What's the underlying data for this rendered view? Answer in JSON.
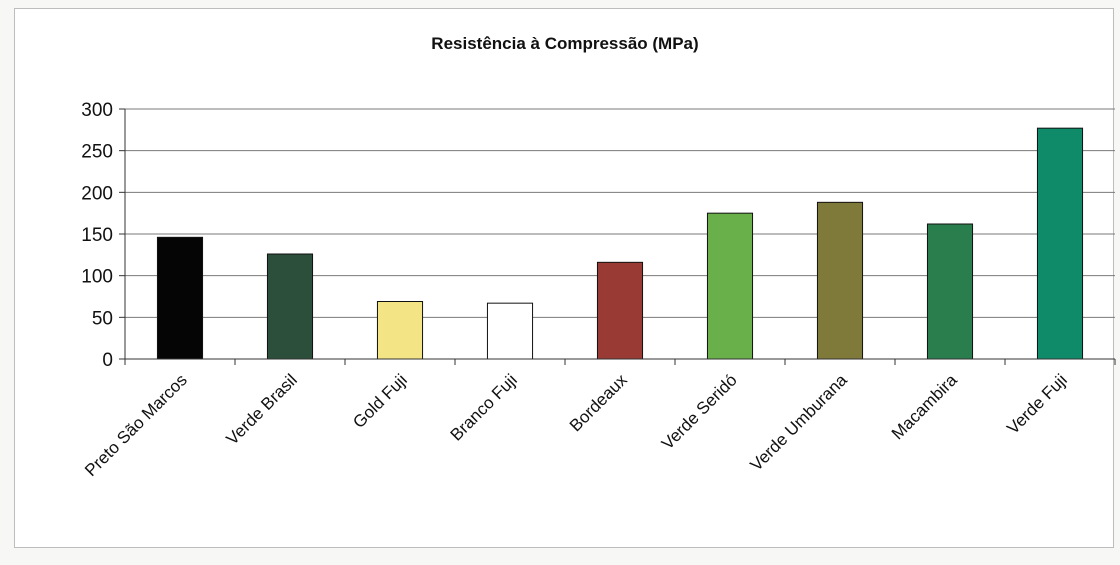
{
  "chart_data": {
    "type": "bar",
    "title": "Resistência à Compressão (MPa)",
    "xlabel": "",
    "ylabel": "",
    "ylim": [
      0,
      300
    ],
    "yticks": [
      0,
      50,
      100,
      150,
      200,
      250,
      300
    ],
    "grid": true,
    "legend": "none",
    "categories": [
      "Preto São Marcos",
      "Verde Brasil",
      "Gold Fuji",
      "Branco Fuji",
      "Bordeaux",
      "Verde Seridó",
      "Verde Umburana",
      "Macambira",
      "Verde Fuji"
    ],
    "values": [
      146,
      126,
      69,
      67,
      116,
      175,
      188,
      162,
      277
    ],
    "colors": [
      "#050505",
      "#2b4f3a",
      "#f3e585",
      "#ffffff",
      "#9a3a35",
      "#6ab04a",
      "#807a3a",
      "#2a7d4c",
      "#0f8b6a"
    ]
  }
}
